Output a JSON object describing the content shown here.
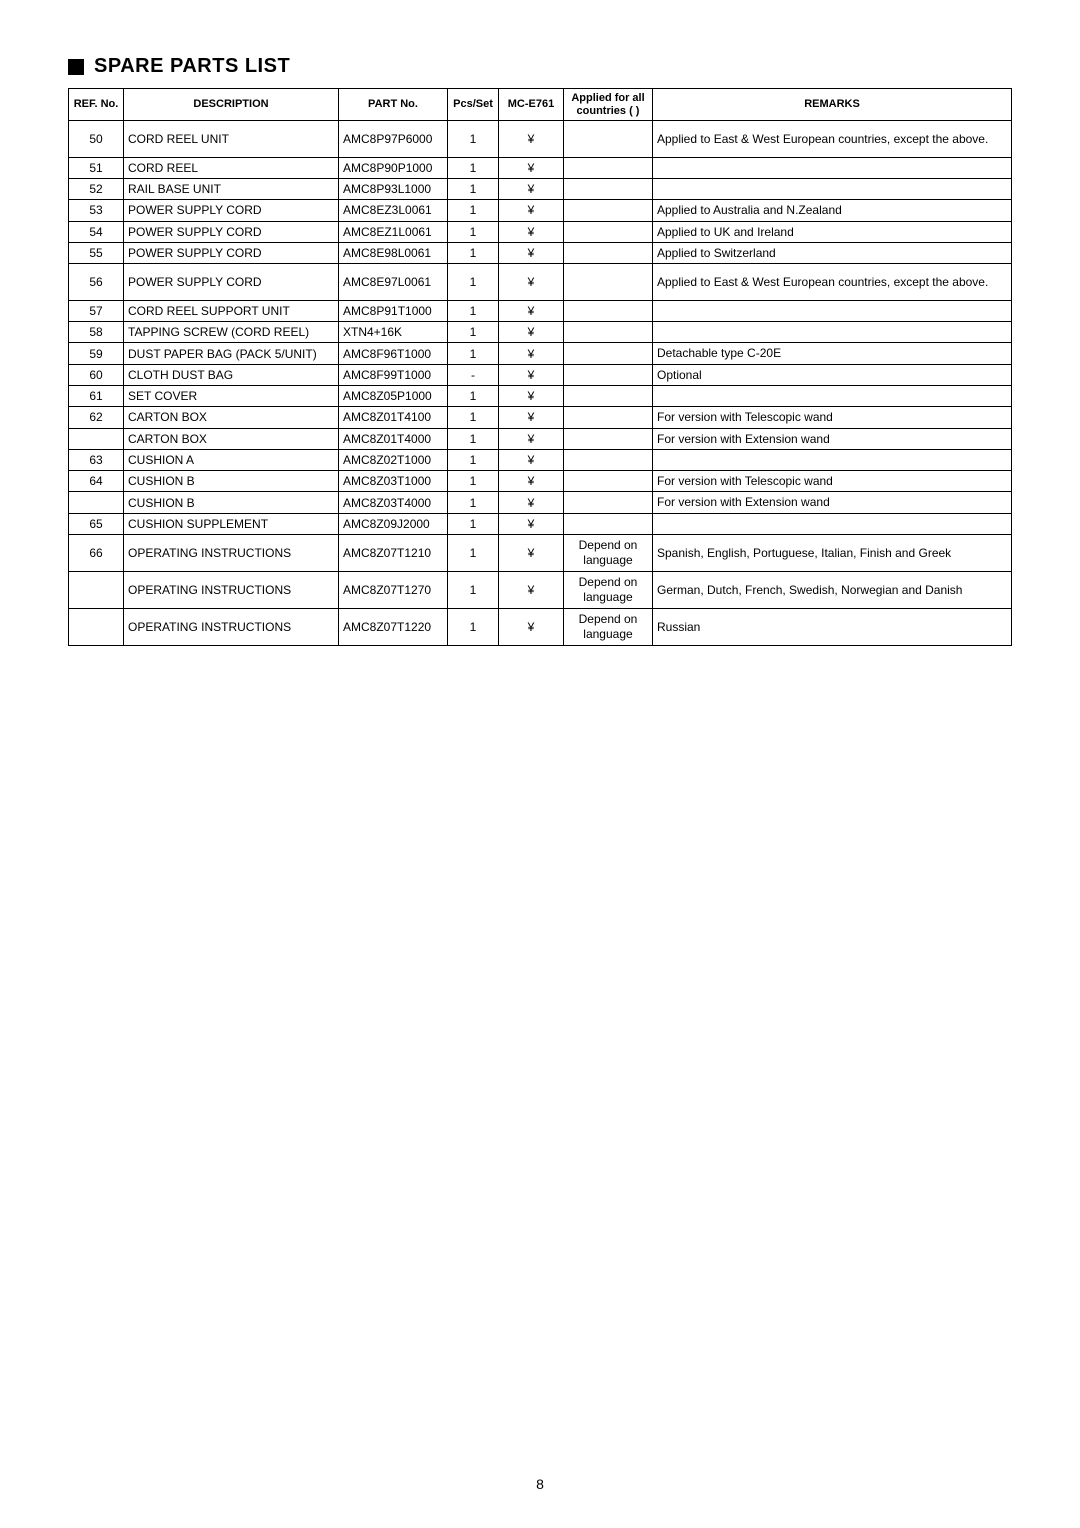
{
  "page_number": "8",
  "title": "SPARE PARTS LIST",
  "table": {
    "columns": [
      "REF. No.",
      "DESCRIPTION",
      "PART No.",
      "Pcs/Set",
      "MC-E761",
      "Applied for all countries (  )",
      "REMARKS"
    ],
    "rows": [
      {
        "ref": "50",
        "desc": "CORD REEL UNIT",
        "part": "AMC8P97P6000",
        "pcs": "1",
        "mc": "¥",
        "app": "",
        "rem": "Applied to East & West European countries, except the above.",
        "tall": true
      },
      {
        "ref": "51",
        "desc": "CORD REEL",
        "part": "AMC8P90P1000",
        "pcs": "1",
        "mc": "¥",
        "app": "",
        "rem": ""
      },
      {
        "ref": "52",
        "desc": "RAIL BASE UNIT",
        "part": "AMC8P93L1000",
        "pcs": "1",
        "mc": "¥",
        "app": "",
        "rem": ""
      },
      {
        "ref": "53",
        "desc": "POWER SUPPLY CORD",
        "part": "AMC8EZ3L0061",
        "pcs": "1",
        "mc": "¥",
        "app": "",
        "rem": "Applied to Australia and N.Zealand"
      },
      {
        "ref": "54",
        "desc": "POWER SUPPLY CORD",
        "part": "AMC8EZ1L0061",
        "pcs": "1",
        "mc": "¥",
        "app": "",
        "rem": "Applied to UK and Ireland"
      },
      {
        "ref": "55",
        "desc": "POWER SUPPLY CORD",
        "part": "AMC8E98L0061",
        "pcs": "1",
        "mc": "¥",
        "app": "",
        "rem": "Applied to Switzerland"
      },
      {
        "ref": "56",
        "desc": "POWER SUPPLY CORD",
        "part": "AMC8E97L0061",
        "pcs": "1",
        "mc": "¥",
        "app": "",
        "rem": "Applied to East & West European countries, except the above.",
        "tall": true
      },
      {
        "ref": "57",
        "desc": "CORD REEL SUPPORT UNIT",
        "part": "AMC8P91T1000",
        "pcs": "1",
        "mc": "¥",
        "app": "",
        "rem": ""
      },
      {
        "ref": "58",
        "desc": "TAPPING SCREW (CORD REEL)",
        "part": "XTN4+16K",
        "pcs": "1",
        "mc": "¥",
        "app": "",
        "rem": ""
      },
      {
        "ref": "59",
        "desc": "DUST PAPER BAG (PACK 5/UNIT)",
        "part": "AMC8F96T1000",
        "pcs": "1",
        "mc": "¥",
        "app": "",
        "rem": "Detachable type C-20E"
      },
      {
        "ref": "60",
        "desc": "CLOTH DUST BAG",
        "part": "AMC8F99T1000",
        "pcs": "-",
        "mc": "¥",
        "app": "",
        "rem": "Optional"
      },
      {
        "ref": "61",
        "desc": "SET COVER",
        "part": "AMC8Z05P1000",
        "pcs": "1",
        "mc": "¥",
        "app": "",
        "rem": ""
      },
      {
        "ref": "62",
        "desc": "CARTON BOX",
        "part": "AMC8Z01T4100",
        "pcs": "1",
        "mc": "¥",
        "app": "",
        "rem": "For version with Telescopic wand"
      },
      {
        "ref": "",
        "desc": "CARTON BOX",
        "part": "AMC8Z01T4000",
        "pcs": "1",
        "mc": "¥",
        "app": "",
        "rem": "For version with Extension wand"
      },
      {
        "ref": "63",
        "desc": "CUSHION A",
        "part": "AMC8Z02T1000",
        "pcs": "1",
        "mc": "¥",
        "app": "",
        "rem": ""
      },
      {
        "ref": "64",
        "desc": "CUSHION B",
        "part": "AMC8Z03T1000",
        "pcs": "1",
        "mc": "¥",
        "app": "",
        "rem": "For version with Telescopic wand"
      },
      {
        "ref": "",
        "desc": "CUSHION B",
        "part": "AMC8Z03T4000",
        "pcs": "1",
        "mc": "¥",
        "app": "",
        "rem": "For version with Extension wand"
      },
      {
        "ref": "65",
        "desc": "CUSHION SUPPLEMENT",
        "part": "AMC8Z09J2000",
        "pcs": "1",
        "mc": "¥",
        "app": "",
        "rem": ""
      },
      {
        "ref": "66",
        "desc": "OPERATING INSTRUCTIONS",
        "part": "AMC8Z07T1210",
        "pcs": "1",
        "mc": "¥",
        "app": "Depend on language",
        "rem": "Spanish, English, Portuguese, Italian, Finish and Greek",
        "tall": true
      },
      {
        "ref": "",
        "desc": "OPERATING INSTRUCTIONS",
        "part": "AMC8Z07T1270",
        "pcs": "1",
        "mc": "¥",
        "app": "Depend on language",
        "rem": "German, Dutch, French, Swedish, Norwegian and Danish",
        "tall": true
      },
      {
        "ref": "",
        "desc": "OPERATING INSTRUCTIONS",
        "part": "AMC8Z07T1220",
        "pcs": "1",
        "mc": "¥",
        "app": "Depend on language",
        "rem": "Russian",
        "tall": true,
        "extra": true
      }
    ]
  }
}
